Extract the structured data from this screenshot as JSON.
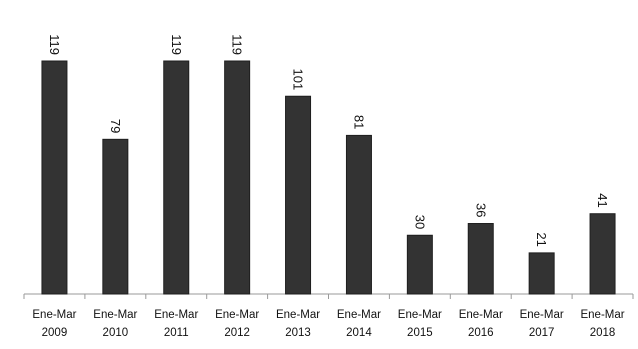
{
  "chart_data": {
    "type": "bar",
    "categories": [
      [
        "Ene-Mar",
        "2009"
      ],
      [
        "Ene-Mar",
        "2010"
      ],
      [
        "Ene-Mar",
        "2011"
      ],
      [
        "Ene-Mar",
        "2012"
      ],
      [
        "Ene-Mar",
        "2013"
      ],
      [
        "Ene-Mar",
        "2014"
      ],
      [
        "Ene-Mar",
        "2015"
      ],
      [
        "Ene-Mar",
        "2016"
      ],
      [
        "Ene-Mar",
        "2017"
      ],
      [
        "Ene-Mar",
        "2018"
      ]
    ],
    "values": [
      119,
      79,
      119,
      119,
      101,
      81,
      30,
      36,
      21,
      41
    ],
    "data_labels": [
      "119",
      "79",
      "119",
      "119",
      "101",
      "81",
      "30",
      "36",
      "21",
      "41"
    ],
    "title": "",
    "xlabel": "",
    "ylabel": "",
    "ylim": [
      0,
      119
    ],
    "grid": false,
    "legend": "none",
    "data_label_orientation": "vertical",
    "bar_color": "#333333",
    "bar_edge_color": "#1e1e1e",
    "axis_color": "#9a9a9a",
    "text_color": "#111111"
  }
}
